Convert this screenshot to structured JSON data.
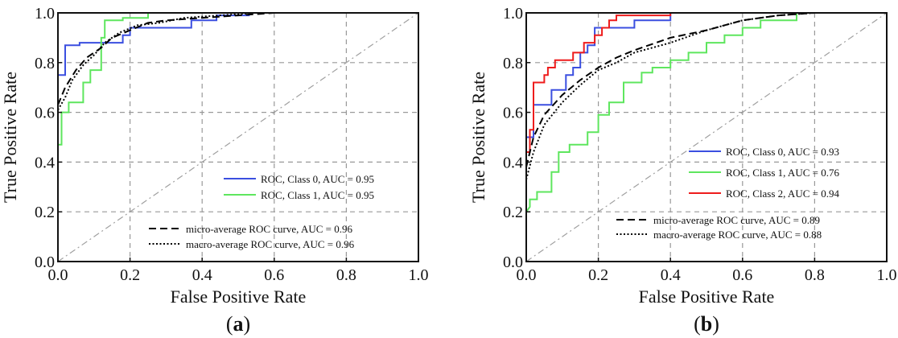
{
  "chart_data": [
    {
      "type": "line",
      "panel_label": "(a)",
      "xlabel": "False Positive Rate",
      "ylabel": "True Positive Rate",
      "xlim": [
        0.0,
        1.0
      ],
      "ylim": [
        0.0,
        1.0
      ],
      "xticks": [
        "0.0",
        "0.2",
        "0.4",
        "0.6",
        "0.8",
        "1.0"
      ],
      "yticks": [
        "0.0",
        "0.2",
        "0.4",
        "0.6",
        "0.8",
        "1.0"
      ],
      "grid": true,
      "legend_placement": "lower-right",
      "series": [
        {
          "name": "ROC, Class 0, AUC = 0.95",
          "color": "#3b4fe0",
          "style": "solid",
          "points": [
            [
              0.0,
              0.75
            ],
            [
              0.02,
              0.75
            ],
            [
              0.02,
              0.87
            ],
            [
              0.06,
              0.87
            ],
            [
              0.06,
              0.88
            ],
            [
              0.18,
              0.88
            ],
            [
              0.18,
              0.91
            ],
            [
              0.2,
              0.91
            ],
            [
              0.2,
              0.94
            ],
            [
              0.37,
              0.94
            ],
            [
              0.37,
              0.97
            ],
            [
              0.44,
              0.97
            ],
            [
              0.44,
              0.99
            ],
            [
              0.53,
              0.99
            ],
            [
              0.53,
              1.0
            ]
          ]
        },
        {
          "name": "ROC, Class 1, AUC = 0.95",
          "color": "#5ee65e",
          "style": "solid",
          "points": [
            [
              0.0,
              0.47
            ],
            [
              0.01,
              0.47
            ],
            [
              0.01,
              0.6
            ],
            [
              0.03,
              0.6
            ],
            [
              0.03,
              0.64
            ],
            [
              0.07,
              0.64
            ],
            [
              0.07,
              0.72
            ],
            [
              0.09,
              0.72
            ],
            [
              0.09,
              0.77
            ],
            [
              0.12,
              0.77
            ],
            [
              0.12,
              0.9
            ],
            [
              0.13,
              0.9
            ],
            [
              0.13,
              0.97
            ],
            [
              0.18,
              0.97
            ],
            [
              0.18,
              0.98
            ],
            [
              0.25,
              0.98
            ],
            [
              0.25,
              1.0
            ]
          ]
        },
        {
          "name": "micro-average ROC curve, AUC = 0.96",
          "color": "#000000",
          "style": "dashed",
          "points": [
            [
              0.0,
              0.63
            ],
            [
              0.02,
              0.7
            ],
            [
              0.05,
              0.77
            ],
            [
              0.08,
              0.82
            ],
            [
              0.12,
              0.86
            ],
            [
              0.15,
              0.9
            ],
            [
              0.2,
              0.93
            ],
            [
              0.25,
              0.96
            ],
            [
              0.3,
              0.97
            ],
            [
              0.4,
              0.98
            ],
            [
              0.5,
              0.99
            ],
            [
              0.6,
              1.0
            ]
          ]
        },
        {
          "name": "macro-average ROC curve, AUC = 0.96",
          "color": "#000000",
          "style": "dotted",
          "points": [
            [
              0.0,
              0.61
            ],
            [
              0.02,
              0.66
            ],
            [
              0.04,
              0.73
            ],
            [
              0.07,
              0.79
            ],
            [
              0.1,
              0.83
            ],
            [
              0.13,
              0.88
            ],
            [
              0.17,
              0.92
            ],
            [
              0.22,
              0.95
            ],
            [
              0.28,
              0.96
            ],
            [
              0.35,
              0.98
            ],
            [
              0.45,
              0.99
            ],
            [
              0.55,
              1.0
            ]
          ]
        },
        {
          "name": "",
          "color": "#a0a0a0",
          "style": "dashdot",
          "points": [
            [
              0.0,
              0.0
            ],
            [
              1.0,
              1.0
            ]
          ]
        }
      ]
    },
    {
      "type": "line",
      "panel_label": "(b)",
      "xlabel": "False Positive Rate",
      "ylabel": "True Positive Rate",
      "xlim": [
        0.0,
        1.0
      ],
      "ylim": [
        0.0,
        1.0
      ],
      "xticks": [
        "0.0",
        "0.2",
        "0.4",
        "0.6",
        "0.8",
        "1.0"
      ],
      "yticks": [
        "0.0",
        "0.2",
        "0.4",
        "0.6",
        "0.8",
        "1.0"
      ],
      "grid": true,
      "legend_placement": "lower-right",
      "series": [
        {
          "name": "ROC, Class 0, AUC = 0.93",
          "color": "#3b4fe0",
          "style": "solid",
          "points": [
            [
              0.0,
              0.5
            ],
            [
              0.02,
              0.5
            ],
            [
              0.02,
              0.63
            ],
            [
              0.07,
              0.63
            ],
            [
              0.07,
              0.69
            ],
            [
              0.11,
              0.69
            ],
            [
              0.11,
              0.75
            ],
            [
              0.13,
              0.75
            ],
            [
              0.13,
              0.78
            ],
            [
              0.15,
              0.78
            ],
            [
              0.15,
              0.84
            ],
            [
              0.17,
              0.84
            ],
            [
              0.17,
              0.87
            ],
            [
              0.19,
              0.87
            ],
            [
              0.19,
              0.94
            ],
            [
              0.3,
              0.94
            ],
            [
              0.3,
              0.97
            ],
            [
              0.4,
              0.97
            ],
            [
              0.4,
              1.0
            ],
            [
              0.42,
              1.0
            ]
          ]
        },
        {
          "name": "ROC, Class 1, AUC = 0.76",
          "color": "#5ee65e",
          "style": "solid",
          "points": [
            [
              0.0,
              0.2
            ],
            [
              0.01,
              0.22
            ],
            [
              0.01,
              0.25
            ],
            [
              0.03,
              0.25
            ],
            [
              0.03,
              0.28
            ],
            [
              0.07,
              0.28
            ],
            [
              0.07,
              0.36
            ],
            [
              0.09,
              0.36
            ],
            [
              0.09,
              0.44
            ],
            [
              0.12,
              0.44
            ],
            [
              0.12,
              0.47
            ],
            [
              0.17,
              0.47
            ],
            [
              0.17,
              0.52
            ],
            [
              0.2,
              0.52
            ],
            [
              0.2,
              0.59
            ],
            [
              0.23,
              0.59
            ],
            [
              0.23,
              0.64
            ],
            [
              0.27,
              0.64
            ],
            [
              0.27,
              0.72
            ],
            [
              0.32,
              0.72
            ],
            [
              0.32,
              0.76
            ],
            [
              0.35,
              0.76
            ],
            [
              0.35,
              0.78
            ],
            [
              0.4,
              0.78
            ],
            [
              0.4,
              0.81
            ],
            [
              0.45,
              0.81
            ],
            [
              0.45,
              0.84
            ],
            [
              0.5,
              0.84
            ],
            [
              0.5,
              0.88
            ],
            [
              0.55,
              0.88
            ],
            [
              0.55,
              0.91
            ],
            [
              0.6,
              0.91
            ],
            [
              0.6,
              0.94
            ],
            [
              0.65,
              0.94
            ],
            [
              0.65,
              0.97
            ],
            [
              0.75,
              0.97
            ],
            [
              0.75,
              1.0
            ]
          ]
        },
        {
          "name": "ROC, Class 2, AUC = 0.94",
          "color": "#ee1c1c",
          "style": "solid",
          "points": [
            [
              0.0,
              0.44
            ],
            [
              0.01,
              0.44
            ],
            [
              0.01,
              0.53
            ],
            [
              0.02,
              0.53
            ],
            [
              0.02,
              0.72
            ],
            [
              0.05,
              0.72
            ],
            [
              0.05,
              0.75
            ],
            [
              0.06,
              0.75
            ],
            [
              0.06,
              0.78
            ],
            [
              0.08,
              0.78
            ],
            [
              0.08,
              0.81
            ],
            [
              0.13,
              0.81
            ],
            [
              0.13,
              0.84
            ],
            [
              0.16,
              0.84
            ],
            [
              0.16,
              0.88
            ],
            [
              0.19,
              0.88
            ],
            [
              0.19,
              0.91
            ],
            [
              0.21,
              0.91
            ],
            [
              0.21,
              0.94
            ],
            [
              0.23,
              0.94
            ],
            [
              0.23,
              0.97
            ],
            [
              0.25,
              0.97
            ],
            [
              0.25,
              0.99
            ],
            [
              0.4,
              0.99
            ],
            [
              0.4,
              1.0
            ]
          ]
        },
        {
          "name": "micro-average ROC curve, AUC = 0.89",
          "color": "#000000",
          "style": "dashed",
          "points": [
            [
              0.0,
              0.38
            ],
            [
              0.02,
              0.5
            ],
            [
              0.05,
              0.59
            ],
            [
              0.1,
              0.67
            ],
            [
              0.15,
              0.73
            ],
            [
              0.2,
              0.78
            ],
            [
              0.25,
              0.82
            ],
            [
              0.3,
              0.85
            ],
            [
              0.4,
              0.9
            ],
            [
              0.5,
              0.93
            ],
            [
              0.6,
              0.97
            ],
            [
              0.7,
              0.99
            ],
            [
              0.8,
              1.0
            ]
          ]
        },
        {
          "name": "macro-average ROC curve, AUC = 0.88",
          "color": "#000000",
          "style": "dotted",
          "points": [
            [
              0.0,
              0.33
            ],
            [
              0.02,
              0.44
            ],
            [
              0.05,
              0.55
            ],
            [
              0.1,
              0.64
            ],
            [
              0.15,
              0.71
            ],
            [
              0.2,
              0.77
            ],
            [
              0.25,
              0.8
            ],
            [
              0.3,
              0.84
            ],
            [
              0.35,
              0.86
            ],
            [
              0.4,
              0.88
            ],
            [
              0.5,
              0.93
            ],
            [
              0.6,
              0.97
            ],
            [
              0.7,
              0.99
            ],
            [
              0.8,
              1.0
            ]
          ]
        },
        {
          "name": "",
          "color": "#a0a0a0",
          "style": "dashdot",
          "points": [
            [
              0.0,
              0.0
            ],
            [
              1.0,
              1.0
            ]
          ]
        }
      ]
    }
  ]
}
